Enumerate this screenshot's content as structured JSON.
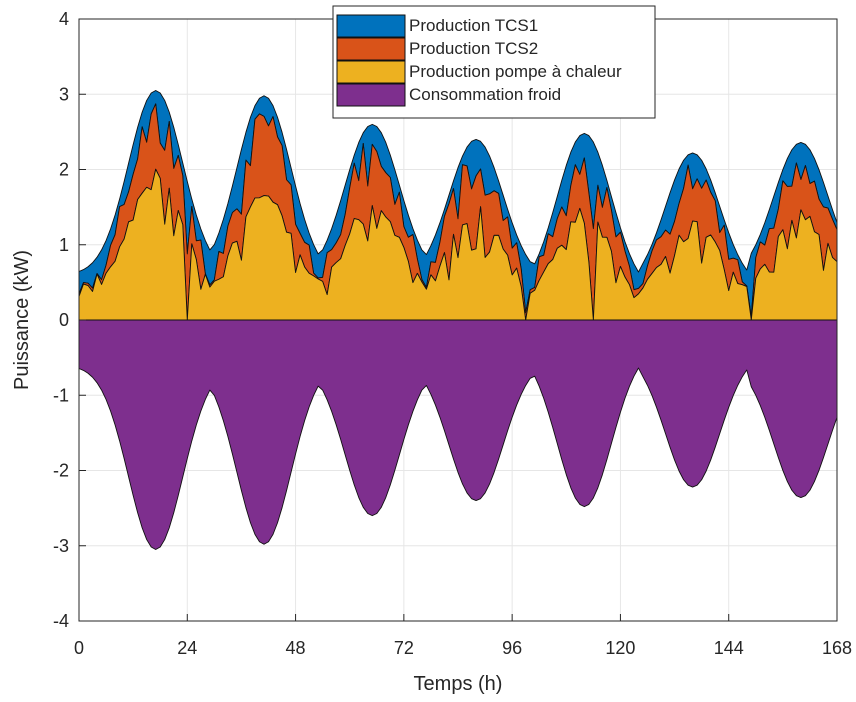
{
  "chart_data": {
    "type": "area",
    "xlabel": "Temps (h)",
    "ylabel": "Puissance (kW)",
    "xlim": [
      0,
      168
    ],
    "ylim": [
      -4,
      4
    ],
    "x_ticks": [
      "0",
      "24",
      "48",
      "72",
      "96",
      "120",
      "144",
      "168"
    ],
    "y_ticks": [
      "-4",
      "-3",
      "-2",
      "-1",
      "0",
      "1",
      "2",
      "3",
      "4"
    ],
    "grid": true,
    "legend_position": "top-center",
    "stacking": "positive series stacked above 0; consumption drawn below 0",
    "series_colors": {
      "Production TCS1": "#0072BD",
      "Production TCS2": "#D95319",
      "Production pompe à chaleur": "#EDB120",
      "Consommation froid": "#7E2F8E"
    },
    "daily_profile_note": "hourly values for 7 days, one peak per day",
    "days": [
      {
        "day": 1,
        "peak_hour": 17,
        "total_peak": 3.05,
        "base": 0.6,
        "hp_share": 0.66
      },
      {
        "day": 2,
        "peak_hour": 41,
        "total_peak": 2.98,
        "base": 0.55,
        "hp_share": 0.6
      },
      {
        "day": 3,
        "peak_hour": 65,
        "total_peak": 2.6,
        "base": 0.55,
        "hp_share": 0.62
      },
      {
        "day": 4,
        "peak_hour": 88,
        "total_peak": 2.4,
        "base": 0.52,
        "hp_share": 0.64
      },
      {
        "day": 5,
        "peak_hour": 112,
        "total_peak": 2.48,
        "base": 0.35,
        "hp_share": 0.62
      },
      {
        "day": 6,
        "peak_hour": 136,
        "total_peak": 2.22,
        "base": 0.42,
        "hp_share": 0.64
      },
      {
        "day": 7,
        "peak_hour": 160,
        "total_peak": 2.36,
        "base": 0.55,
        "hp_share": 0.64
      }
    ],
    "series": [
      {
        "name": "Production TCS1"
      },
      {
        "name": "Production TCS2"
      },
      {
        "name": "Production pompe à chaleur"
      },
      {
        "name": "Consommation froid"
      }
    ]
  }
}
